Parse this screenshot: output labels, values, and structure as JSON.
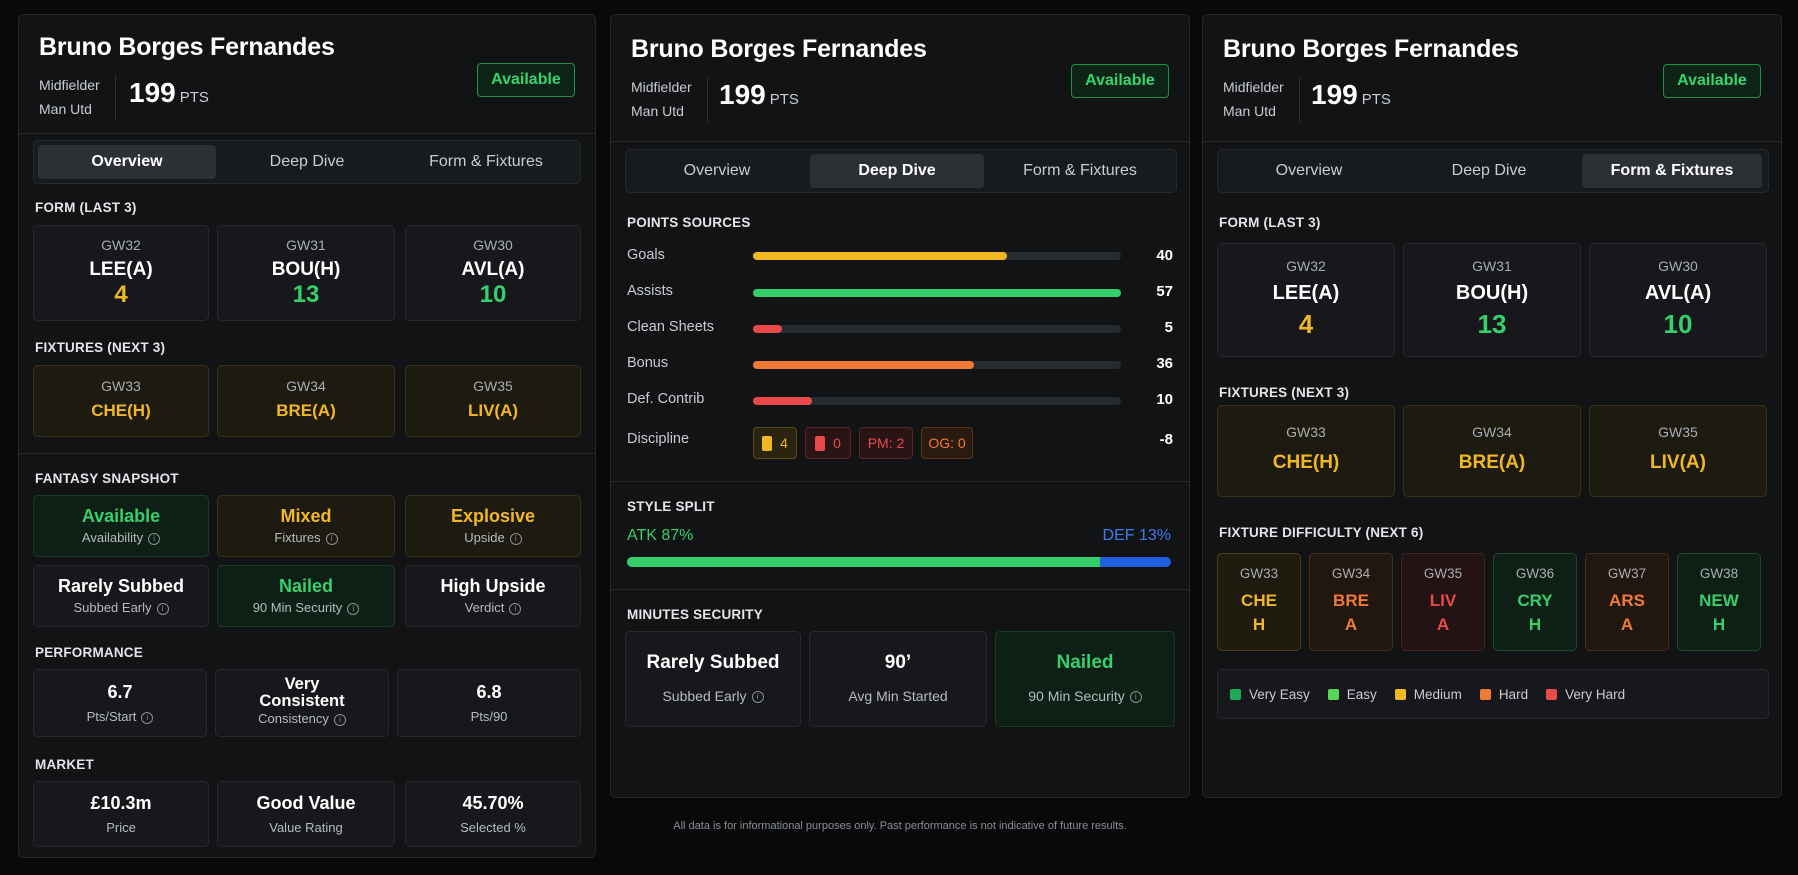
{
  "player": {
    "name": "Bruno Borges Fernandes",
    "position": "Midfielder",
    "team": "Man Utd",
    "points": "199",
    "points_unit": "PTS",
    "status": "Available"
  },
  "tabs": [
    "Overview",
    "Deep Dive",
    "Form & Fixtures"
  ],
  "sections": {
    "form": "FORM (LAST 3)",
    "fixtures": "FIXTURES (NEXT 3)",
    "snapshot": "FANTASY SNAPSHOT",
    "performance": "PERFORMANCE",
    "market": "MARKET",
    "points_sources": "POINTS SOURCES",
    "style_split": "STYLE SPLIT",
    "minutes_security": "MINUTES SECURITY",
    "fixture_difficulty": "FIXTURE DIFFICULTY (NEXT 6)"
  },
  "form": [
    {
      "gw": "GW32",
      "opp": "LEE(A)",
      "pts": "4",
      "color": "#f2b824"
    },
    {
      "gw": "GW31",
      "opp": "BOU(H)",
      "pts": "13",
      "color": "#35d06b"
    },
    {
      "gw": "GW30",
      "opp": "AVL(A)",
      "pts": "10",
      "color": "#35d06b"
    }
  ],
  "fixtures": [
    {
      "gw": "GW33",
      "opp": "CHE(H)"
    },
    {
      "gw": "GW34",
      "opp": "BRE(A)"
    },
    {
      "gw": "GW35",
      "opp": "LIV(A)"
    }
  ],
  "snapshot": [
    {
      "value": "Available",
      "label": "Availability"
    },
    {
      "value": "Mixed",
      "label": "Fixtures"
    },
    {
      "value": "Explosive",
      "label": "Upside"
    },
    {
      "value": "Rarely Subbed",
      "label": "Subbed Early"
    },
    {
      "value": "Nailed",
      "label": "90 Min Security"
    },
    {
      "value": "High Upside",
      "label": "Verdict"
    }
  ],
  "performance": [
    {
      "value": "6.7",
      "label": "Pts/Start"
    },
    {
      "value": "Very Consistent",
      "label": "Consistency"
    },
    {
      "value": "6.8",
      "label": "Pts/90"
    }
  ],
  "market": [
    {
      "value": "£10.3m",
      "label": "Price"
    },
    {
      "value": "Good Value",
      "label": "Value Rating"
    },
    {
      "value": "45.70%",
      "label": "Selected %"
    }
  ],
  "points_sources": [
    {
      "label": "Goals",
      "value": "40",
      "fill": 0.69,
      "color": "#f2b824"
    },
    {
      "label": "Assists",
      "value": "57",
      "fill": 1.0,
      "color": "#35d06b"
    },
    {
      "label": "Clean Sheets",
      "value": "5",
      "fill": 0.08,
      "color": "#e94b4b"
    },
    {
      "label": "Bonus",
      "value": "36",
      "fill": 0.6,
      "color": "#f07a36"
    },
    {
      "label": "Def. Contrib",
      "value": "10",
      "fill": 0.16,
      "color": "#e94b4b"
    }
  ],
  "discipline": {
    "label": "Discipline",
    "yellow": "4",
    "red": "0",
    "pm": "PM: 2",
    "og": "OG: 0",
    "value": "-8"
  },
  "style_split": {
    "atk_label": "ATK 87%",
    "def_label": "DEF 13%",
    "atk_fraction": 0.87
  },
  "minutes_security": [
    {
      "value": "Rarely Subbed",
      "label": "Subbed Early"
    },
    {
      "value": "90’",
      "label": "Avg Min Started"
    },
    {
      "value": "Nailed",
      "label": "90 Min Security"
    }
  ],
  "difficulty": [
    {
      "gw": "GW33",
      "team": "CHE",
      "venue": "H",
      "color": "#f2b824",
      "bg": "#1f1b0f",
      "border": "#4a3d16"
    },
    {
      "gw": "GW34",
      "team": "BRE",
      "venue": "A",
      "color": "#f07a36",
      "bg": "#22170f",
      "border": "#4b2c18"
    },
    {
      "gw": "GW35",
      "team": "LIV",
      "venue": "A",
      "color": "#e94b4b",
      "bg": "#231314",
      "border": "#4b2224"
    },
    {
      "gw": "GW36",
      "team": "CRY",
      "venue": "H",
      "color": "#35d06b",
      "bg": "#0e1f15",
      "border": "#1d4a2d"
    },
    {
      "gw": "GW37",
      "team": "ARS",
      "venue": "A",
      "color": "#f07a36",
      "bg": "#22170f",
      "border": "#4b2c18"
    },
    {
      "gw": "GW38",
      "team": "NEW",
      "venue": "H",
      "color": "#35d06b",
      "bg": "#0e1f15",
      "border": "#1d4a2d"
    }
  ],
  "legend": [
    {
      "label": "Very Easy",
      "color": "#1faa5a"
    },
    {
      "label": "Easy",
      "color": "#58d65c"
    },
    {
      "label": "Medium",
      "color": "#f2b824"
    },
    {
      "label": "Hard",
      "color": "#f07a36"
    },
    {
      "label": "Very Hard",
      "color": "#e94b4b"
    }
  ],
  "footer": "All data is for informational purposes only. Past performance is not indicative of future results."
}
